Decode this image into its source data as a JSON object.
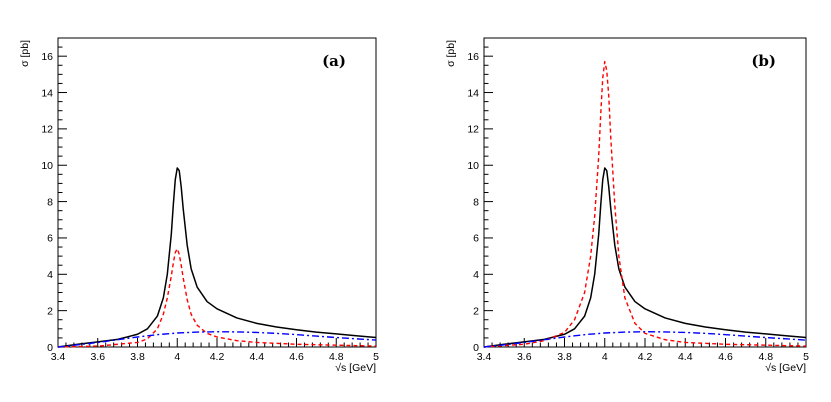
{
  "chart_data": [
    {
      "type": "line",
      "panel_label": "(a)",
      "xlabel": "√s [GeV]",
      "ylabel": "σ [pb]",
      "xlim": [
        3.4,
        5.0
      ],
      "ylim": [
        0,
        17
      ],
      "x_ticks": [
        3.4,
        3.6,
        3.8,
        4.0,
        4.2,
        4.4,
        4.6,
        4.8,
        5.0
      ],
      "x_tick_labels": [
        "3.4",
        "3.6",
        "3.8",
        "4",
        "4.2",
        "4.4",
        "4.6",
        "4.8",
        "5"
      ],
      "y_ticks": [
        0,
        2,
        4,
        6,
        8,
        10,
        12,
        14,
        16
      ],
      "y_tick_labels": [
        "0",
        "2",
        "4",
        "6",
        "8",
        "10",
        "12",
        "14",
        "16"
      ],
      "grid": false,
      "series": [
        {
          "style": "solid",
          "color": "#000000",
          "x": [
            3.4,
            3.5,
            3.6,
            3.7,
            3.8,
            3.85,
            3.9,
            3.93,
            3.95,
            3.97,
            3.98,
            3.99,
            4.0,
            4.01,
            4.02,
            4.03,
            4.05,
            4.07,
            4.1,
            4.15,
            4.2,
            4.3,
            4.4,
            4.5,
            4.6,
            4.7,
            4.8,
            4.9,
            5.0
          ],
          "y": [
            0.0,
            0.15,
            0.28,
            0.42,
            0.7,
            1.0,
            1.7,
            2.7,
            4.0,
            6.2,
            7.8,
            9.2,
            9.85,
            9.7,
            8.8,
            7.6,
            5.6,
            4.3,
            3.3,
            2.5,
            2.1,
            1.6,
            1.3,
            1.1,
            0.95,
            0.82,
            0.72,
            0.62,
            0.52
          ]
        },
        {
          "style": "dashed",
          "color": "#ff0000",
          "x": [
            3.4,
            3.6,
            3.8,
            3.85,
            3.9,
            3.93,
            3.95,
            3.97,
            3.98,
            3.99,
            4.0,
            4.01,
            4.02,
            4.03,
            4.05,
            4.07,
            4.1,
            4.15,
            4.2,
            4.3,
            4.4,
            4.6,
            4.8,
            5.0
          ],
          "y": [
            0.0,
            0.05,
            0.25,
            0.45,
            1.0,
            1.8,
            2.7,
            3.9,
            4.6,
            5.2,
            5.4,
            5.1,
            4.5,
            3.8,
            2.6,
            1.8,
            1.2,
            0.75,
            0.55,
            0.35,
            0.25,
            0.15,
            0.1,
            0.05
          ]
        },
        {
          "style": "dash-dot",
          "color": "#0000ff",
          "x": [
            3.4,
            3.5,
            3.6,
            3.7,
            3.8,
            3.9,
            4.0,
            4.1,
            4.2,
            4.3,
            4.4,
            4.5,
            4.6,
            4.7,
            4.8,
            4.9,
            5.0
          ],
          "y": [
            0.0,
            0.12,
            0.25,
            0.4,
            0.55,
            0.68,
            0.77,
            0.82,
            0.84,
            0.83,
            0.8,
            0.75,
            0.68,
            0.6,
            0.52,
            0.45,
            0.38
          ]
        }
      ]
    },
    {
      "type": "line",
      "panel_label": "(b)",
      "xlabel": "√s [GeV]",
      "ylabel": "σ [pb]",
      "xlim": [
        3.4,
        5.0
      ],
      "ylim": [
        0,
        17
      ],
      "x_ticks": [
        3.4,
        3.6,
        3.8,
        4.0,
        4.2,
        4.4,
        4.6,
        4.8,
        5.0
      ],
      "x_tick_labels": [
        "3.4",
        "3.6",
        "3.8",
        "4",
        "4.2",
        "4.4",
        "4.6",
        "4.8",
        "5"
      ],
      "y_ticks": [
        0,
        2,
        4,
        6,
        8,
        10,
        12,
        14,
        16
      ],
      "y_tick_labels": [
        "0",
        "2",
        "4",
        "6",
        "8",
        "10",
        "12",
        "14",
        "16"
      ],
      "grid": false,
      "series": [
        {
          "style": "solid",
          "color": "#000000",
          "x": [
            3.4,
            3.5,
            3.6,
            3.7,
            3.8,
            3.85,
            3.9,
            3.93,
            3.95,
            3.97,
            3.98,
            3.99,
            4.0,
            4.01,
            4.02,
            4.03,
            4.05,
            4.07,
            4.1,
            4.15,
            4.2,
            4.3,
            4.4,
            4.5,
            4.6,
            4.7,
            4.8,
            4.9,
            5.0
          ],
          "y": [
            0.0,
            0.15,
            0.28,
            0.42,
            0.7,
            1.0,
            1.7,
            2.7,
            4.0,
            6.2,
            7.8,
            9.2,
            9.85,
            9.7,
            8.8,
            7.6,
            5.6,
            4.3,
            3.3,
            2.5,
            2.1,
            1.6,
            1.3,
            1.1,
            0.95,
            0.82,
            0.72,
            0.62,
            0.52
          ]
        },
        {
          "style": "dashed",
          "color": "#ff0000",
          "x": [
            3.4,
            3.6,
            3.7,
            3.8,
            3.85,
            3.9,
            3.93,
            3.95,
            3.97,
            3.98,
            3.99,
            4.0,
            4.01,
            4.02,
            4.03,
            4.05,
            4.07,
            4.1,
            4.15,
            4.2,
            4.3,
            4.4,
            4.6,
            4.8,
            5.0
          ],
          "y": [
            0.0,
            0.15,
            0.35,
            0.8,
            1.5,
            3.0,
            5.0,
            7.2,
            10.5,
            12.8,
            14.8,
            15.7,
            15.2,
            13.8,
            11.5,
            7.8,
            5.0,
            2.7,
            1.3,
            0.75,
            0.4,
            0.25,
            0.15,
            0.1,
            0.05
          ]
        },
        {
          "style": "dash-dot",
          "color": "#0000ff",
          "x": [
            3.4,
            3.5,
            3.6,
            3.7,
            3.8,
            3.9,
            4.0,
            4.1,
            4.2,
            4.3,
            4.4,
            4.5,
            4.6,
            4.7,
            4.8,
            4.9,
            5.0
          ],
          "y": [
            0.0,
            0.12,
            0.25,
            0.4,
            0.55,
            0.68,
            0.77,
            0.82,
            0.84,
            0.83,
            0.8,
            0.75,
            0.68,
            0.6,
            0.52,
            0.45,
            0.38
          ]
        }
      ]
    }
  ]
}
